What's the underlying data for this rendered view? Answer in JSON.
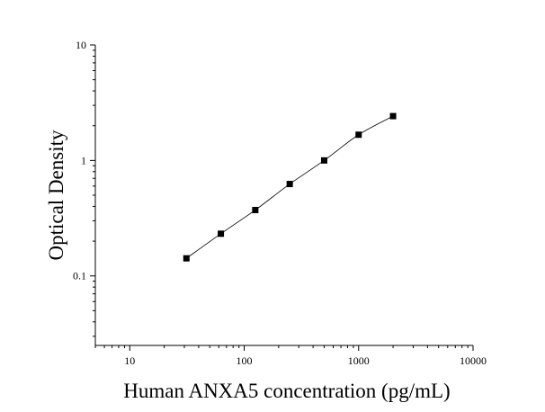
{
  "chart_data": {
    "type": "scatter",
    "xlabel": "Human ANXA5 concentration (pg/mL)",
    "ylabel": "Optical Density",
    "xscale": "log",
    "yscale": "log",
    "xlim": [
      5,
      10000
    ],
    "ylim": [
      0.025,
      10
    ],
    "x_ticks": [
      {
        "value": 10,
        "label": "10"
      },
      {
        "value": 100,
        "label": "100"
      },
      {
        "value": 1000,
        "label": "1000"
      },
      {
        "value": 10000,
        "label": "10000"
      }
    ],
    "y_ticks": [
      {
        "value": 0.1,
        "label": "0.1"
      },
      {
        "value": 1,
        "label": "1"
      },
      {
        "value": 10,
        "label": "10"
      }
    ],
    "grid": false,
    "legend": "none",
    "series": [
      {
        "marker": "square",
        "fit_curve": true,
        "color": "#000000",
        "points": [
          {
            "x": 31.25,
            "y": 0.142
          },
          {
            "x": 62.5,
            "y": 0.232
          },
          {
            "x": 125,
            "y": 0.372
          },
          {
            "x": 250,
            "y": 0.625
          },
          {
            "x": 500,
            "y": 1.0
          },
          {
            "x": 1000,
            "y": 1.67
          },
          {
            "x": 2000,
            "y": 2.42
          }
        ]
      }
    ]
  }
}
